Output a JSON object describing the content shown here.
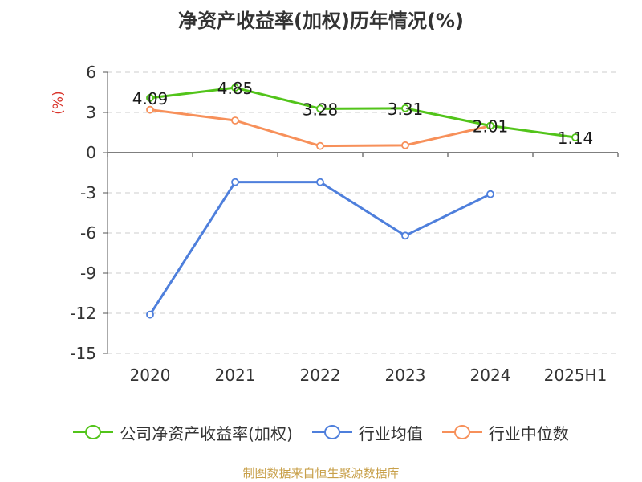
{
  "chart_data": {
    "type": "line",
    "title": "净资产收益率(加权)历年情况(%)",
    "ylabel": "(%)",
    "categories": [
      "2020",
      "2021",
      "2022",
      "2023",
      "2024",
      "2025H1"
    ],
    "ylim": [
      -15,
      6
    ],
    "yticks": [
      6,
      3,
      0,
      -3,
      -6,
      -9,
      -12,
      -15
    ],
    "grid": true,
    "legend_position": "bottom",
    "series": [
      {
        "name": "公司净资产收益率(加权)",
        "color": "#52c41a",
        "values": [
          4.09,
          4.85,
          3.28,
          3.31,
          2.01,
          1.14
        ],
        "labels": [
          "4.09",
          "4.85",
          "3.28",
          "3.31",
          "2.01",
          "1.14"
        ]
      },
      {
        "name": "行业均值",
        "color": "#4e7fdc",
        "values": [
          -12.1,
          -2.2,
          -2.2,
          -6.2,
          -3.1,
          null
        ]
      },
      {
        "name": "行业中位数",
        "color": "#f7905a",
        "values": [
          3.2,
          2.4,
          0.5,
          0.55,
          2.0,
          null
        ]
      }
    ]
  },
  "source": "制图数据来自恒生聚源数据库"
}
